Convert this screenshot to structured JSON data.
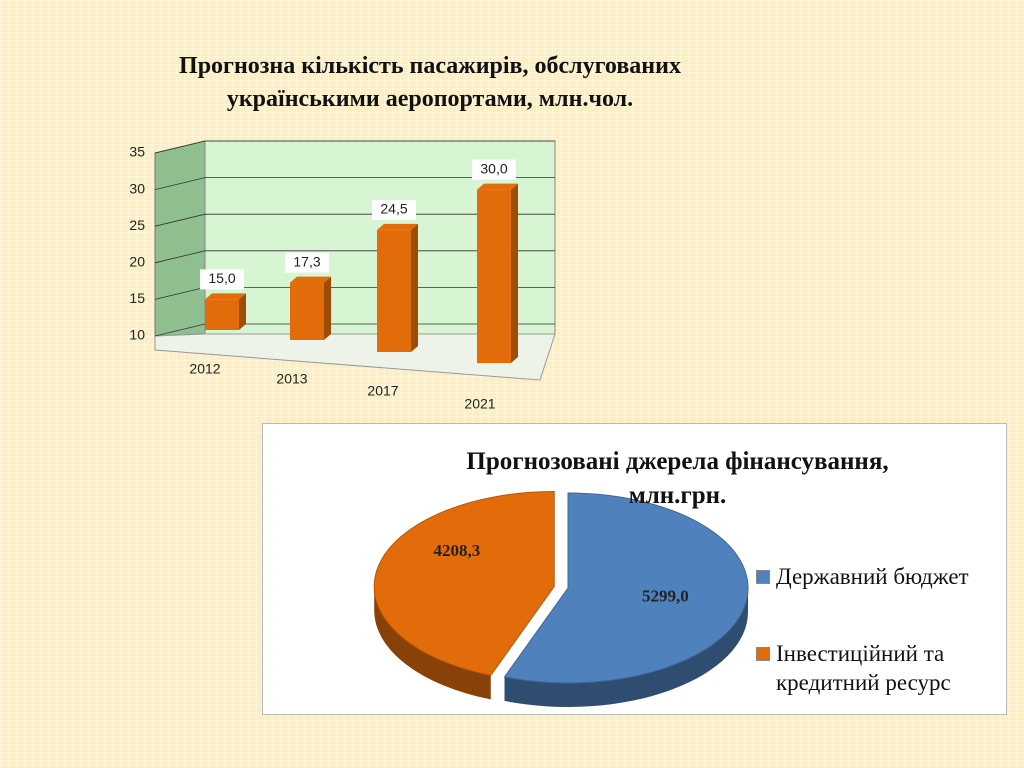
{
  "chart_data": [
    {
      "type": "bar",
      "title": "Прогнозна кількість пасажирів, обслугованих українськими аеропортами, млн.чол.",
      "categories": [
        "2012",
        "2013",
        "2017",
        "2021"
      ],
      "values": [
        15.0,
        17.3,
        24.5,
        30.0
      ],
      "value_labels": [
        "15,0",
        "17,3",
        "24,5",
        "30,0"
      ],
      "color": "#e36c0a",
      "ylim": [
        10,
        35
      ],
      "yticks": [
        10,
        15,
        20,
        25,
        30,
        35
      ],
      "grid": true
    },
    {
      "type": "pie",
      "title": "Прогнозовані джерела фінансування, млн.грн.",
      "categories": [
        "Державний бюджет",
        "Інвестиційний та кредитний ресурс"
      ],
      "values": [
        5299.0,
        4208.3
      ],
      "value_labels": [
        "5299,0",
        "4208,3"
      ],
      "colors": [
        "#4f81bd",
        "#e36c0a"
      ],
      "legend": "right"
    }
  ]
}
